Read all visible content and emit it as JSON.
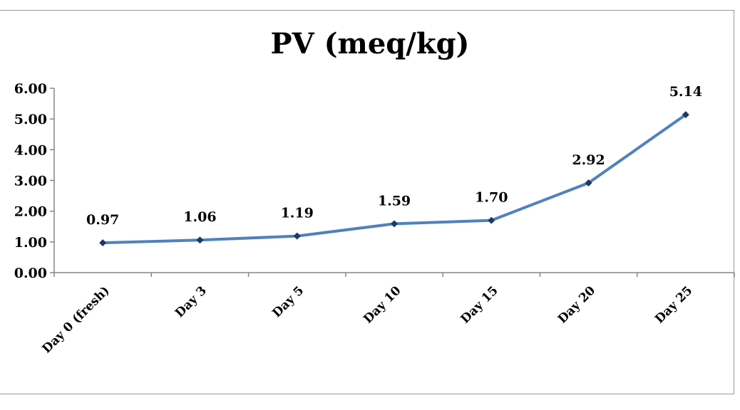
{
  "chart_data": {
    "type": "line",
    "title": "PV (meq/kg)",
    "xlabel": "",
    "ylabel": "",
    "categories": [
      "Day 0 (fresh)",
      "Day 3",
      "Day 5",
      "Day 10",
      "Day 15",
      "Day 20",
      "Day 25"
    ],
    "series": [
      {
        "values": [
          0.97,
          1.06,
          1.19,
          1.59,
          1.7,
          2.92,
          5.14
        ]
      }
    ],
    "data_labels": [
      "0.97",
      "1.06",
      "1.19",
      "1.59",
      "1.70",
      "2.92",
      "5.14"
    ],
    "y_ticks": [
      "0.00",
      "1.00",
      "2.00",
      "3.00",
      "4.00",
      "5.00",
      "6.00"
    ],
    "ylim": [
      0,
      6
    ],
    "grid": false,
    "legend": "none",
    "line_color": "#4f81bd",
    "marker_color": "#1f3864"
  }
}
